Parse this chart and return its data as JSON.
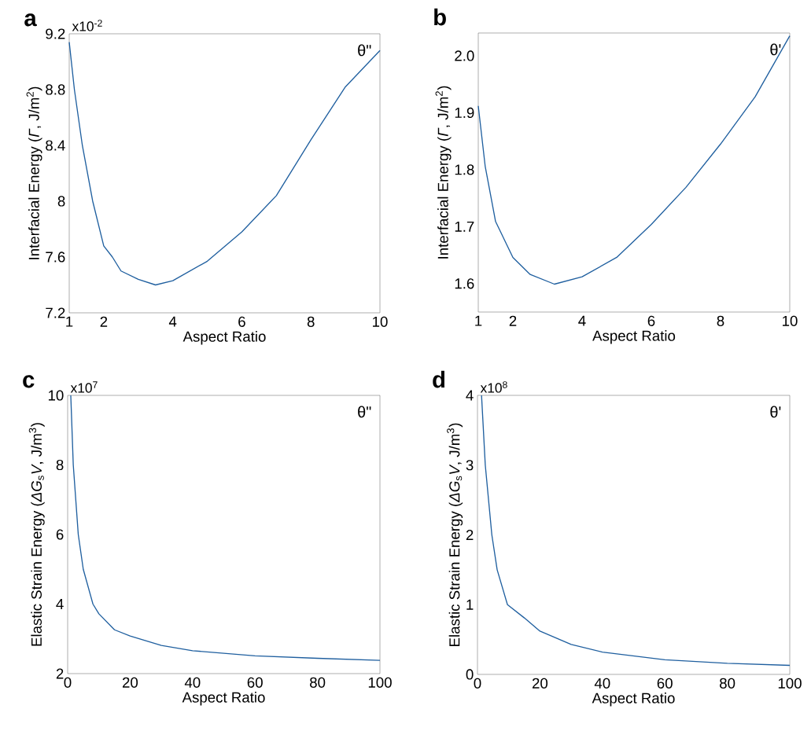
{
  "chart_data": [
    {
      "type": "line",
      "title": "a",
      "xlabel": "Aspect Ratio",
      "ylabel": "Interfacial Energy (*Γ*, J/m$^{2}$)",
      "annotations": [
        "x10$^{-2}$",
        "θ\""
      ],
      "xlim": [
        1,
        10
      ],
      "ylim": [
        7.2,
        9.2
      ],
      "xticks": [
        1,
        2,
        4,
        6,
        8,
        10
      ],
      "yticks": [
        7.2,
        7.6,
        8,
        8.4,
        8.8,
        9.2
      ],
      "series": [
        {
          "color": "#1f5f9f",
          "x": [
            1,
            1.15,
            1.38,
            1.68,
            2,
            2.25,
            2.5,
            3,
            3.5,
            4,
            5,
            6,
            7,
            8,
            9,
            10
          ],
          "values": [
            9.14,
            8.8,
            8.4,
            8.0,
            7.68,
            7.6,
            7.5,
            7.44,
            7.4,
            7.43,
            7.57,
            7.78,
            8.04,
            8.44,
            8.82,
            9.08
          ]
        }
      ]
    },
    {
      "type": "line",
      "title": "b",
      "xlabel": "Aspect Ratio",
      "ylabel": "Interfacial Energy (*Γ*, J/m$^{2}$)",
      "annotations": [
        "θ'"
      ],
      "xlim": [
        1,
        10
      ],
      "ylim": [
        1.55,
        2.04
      ],
      "xticks": [
        1,
        2,
        4,
        6,
        8,
        10
      ],
      "yticks": [
        1.6,
        1.7,
        1.8,
        1.9,
        {
          "value": 2,
          "label": "2.0"
        }
      ],
      "series": [
        {
          "color": "#1f5f9f",
          "x": [
            1,
            1.2,
            1.5,
            2,
            2.5,
            3.2,
            4,
            5,
            6,
            7,
            8,
            9,
            10
          ],
          "values": [
            1.912,
            1.806,
            1.709,
            1.646,
            1.616,
            1.599,
            1.612,
            1.646,
            1.704,
            1.769,
            1.845,
            1.928,
            2.035
          ]
        }
      ]
    },
    {
      "type": "line",
      "title": "c",
      "xlabel": "Aspect Ratio",
      "ylabel": "Elastic Strain Energy (*ΔG*$_{s}$*V*, J/m$^{3}$)",
      "annotations": [
        "x10$^{7}$",
        "θ\""
      ],
      "xlim": [
        0,
        100
      ],
      "ylim": [
        2,
        10
      ],
      "xticks": [
        0,
        20,
        40,
        60,
        80,
        100
      ],
      "yticks": [
        2,
        4,
        6,
        8,
        10
      ],
      "series": [
        {
          "color": "#1f5f9f",
          "x": [
            1,
            1.8,
            3.4,
            5,
            8.1,
            10,
            15,
            20,
            30,
            40,
            60,
            80,
            100
          ],
          "values": [
            10,
            8,
            6,
            5,
            4,
            3.72,
            3.26,
            3.08,
            2.81,
            2.66,
            2.51,
            2.44,
            2.38
          ]
        }
      ]
    },
    {
      "type": "line",
      "title": "d",
      "xlabel": "Aspect Ratio",
      "ylabel": "Elastic Strain Energy (*ΔG*$_{s}$*V*, J/m$^{3}$)",
      "annotations": [
        "x10$^{8}$",
        "θ'"
      ],
      "xlim": [
        0,
        100
      ],
      "ylim": [
        0,
        4
      ],
      "xticks": [
        0,
        20,
        40,
        60,
        80,
        100
      ],
      "yticks": [
        0,
        1,
        2,
        3,
        4
      ],
      "series": [
        {
          "color": "#1f5f9f",
          "x": [
            1.3,
            2.5,
            4.6,
            6.3,
            9.6,
            15,
            20,
            30,
            40,
            60,
            80,
            100
          ],
          "values": [
            4,
            3,
            2,
            1.5,
            1,
            0.81,
            0.62,
            0.43,
            0.32,
            0.21,
            0.16,
            0.13
          ]
        }
      ]
    }
  ]
}
